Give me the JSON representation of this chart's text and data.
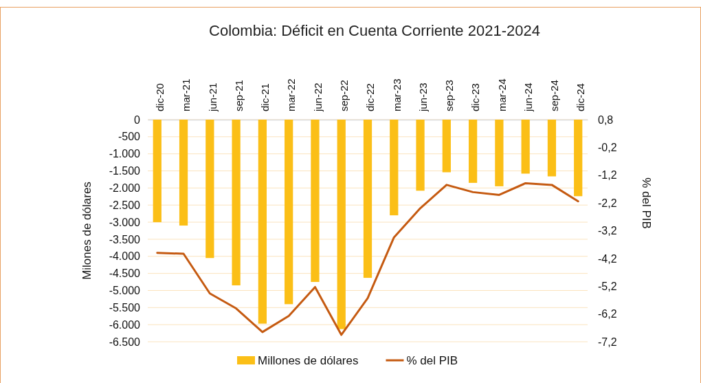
{
  "chart_data": {
    "type": "bar",
    "title": "Colombia: Déficit en Cuenta Corriente 2021-2024",
    "ylabel": "Milones de dólares",
    "y2label": "% del PIB",
    "categories": [
      "dic-20",
      "mar-21",
      "jun-21",
      "sep-21",
      "dic-21",
      "mar-22",
      "jun-22",
      "sep-22",
      "dic-22",
      "mar-23",
      "jun-23",
      "sep-23",
      "dic-23",
      "mar-24",
      "jun-24",
      "sep-24",
      "dic-24"
    ],
    "series": [
      {
        "name": "Millones de dólares",
        "color": "#fbbf17",
        "values": [
          -3000,
          -3100,
          -4050,
          -4850,
          -5970,
          -5400,
          -4750,
          -6130,
          -4630,
          -2800,
          -2080,
          -1540,
          -1850,
          -1950,
          -1580,
          -1660,
          -2240
        ]
      },
      {
        "name": "% del PIB",
        "type": "line",
        "axis": "y2",
        "color": "#c55a11",
        "values": [
          -4.0,
          -4.03,
          -5.46,
          -6.0,
          -6.85,
          -6.27,
          -5.23,
          -6.95,
          -5.63,
          -3.44,
          -2.39,
          -1.55,
          -1.81,
          -1.91,
          -1.49,
          -1.55,
          -2.14
        ]
      }
    ],
    "ylim": [
      -6500,
      0
    ],
    "yticks": [
      0,
      -500,
      {
        "value": -1000,
        "label": "-1.000"
      },
      {
        "value": -1500,
        "label": "-1.500"
      },
      {
        "value": -2000,
        "label": "-2.000"
      },
      {
        "value": -2500,
        "label": "-2.500"
      },
      {
        "value": -3000,
        "label": "-3.000"
      },
      {
        "value": -3500,
        "label": "-3.500"
      },
      {
        "value": -4000,
        "label": "-4.000"
      },
      {
        "value": -4500,
        "label": "-4.500"
      },
      {
        "value": -5000,
        "label": "-5.000"
      },
      {
        "value": -5500,
        "label": "-5.500"
      },
      {
        "value": -6000,
        "label": "-6.000"
      },
      {
        "value": -6500,
        "label": "-6.500"
      }
    ],
    "y2lim": [
      -7.2,
      0.8
    ],
    "y2ticks": [
      {
        "value": 0.8,
        "label": "0,8"
      },
      {
        "value": -0.2,
        "label": "-0,2"
      },
      {
        "value": -1.2,
        "label": "-1,2"
      },
      {
        "value": -2.2,
        "label": "-2,2"
      },
      {
        "value": -3.2,
        "label": "-3,2"
      },
      {
        "value": -4.2,
        "label": "-4,2"
      },
      {
        "value": -5.2,
        "label": "-5,2"
      },
      {
        "value": -6.2,
        "label": "-6,2"
      },
      {
        "value": -7.2,
        "label": "-7,2"
      }
    ],
    "grid": "y",
    "legend": "bottom",
    "marker": "none",
    "line_style": "solid"
  }
}
